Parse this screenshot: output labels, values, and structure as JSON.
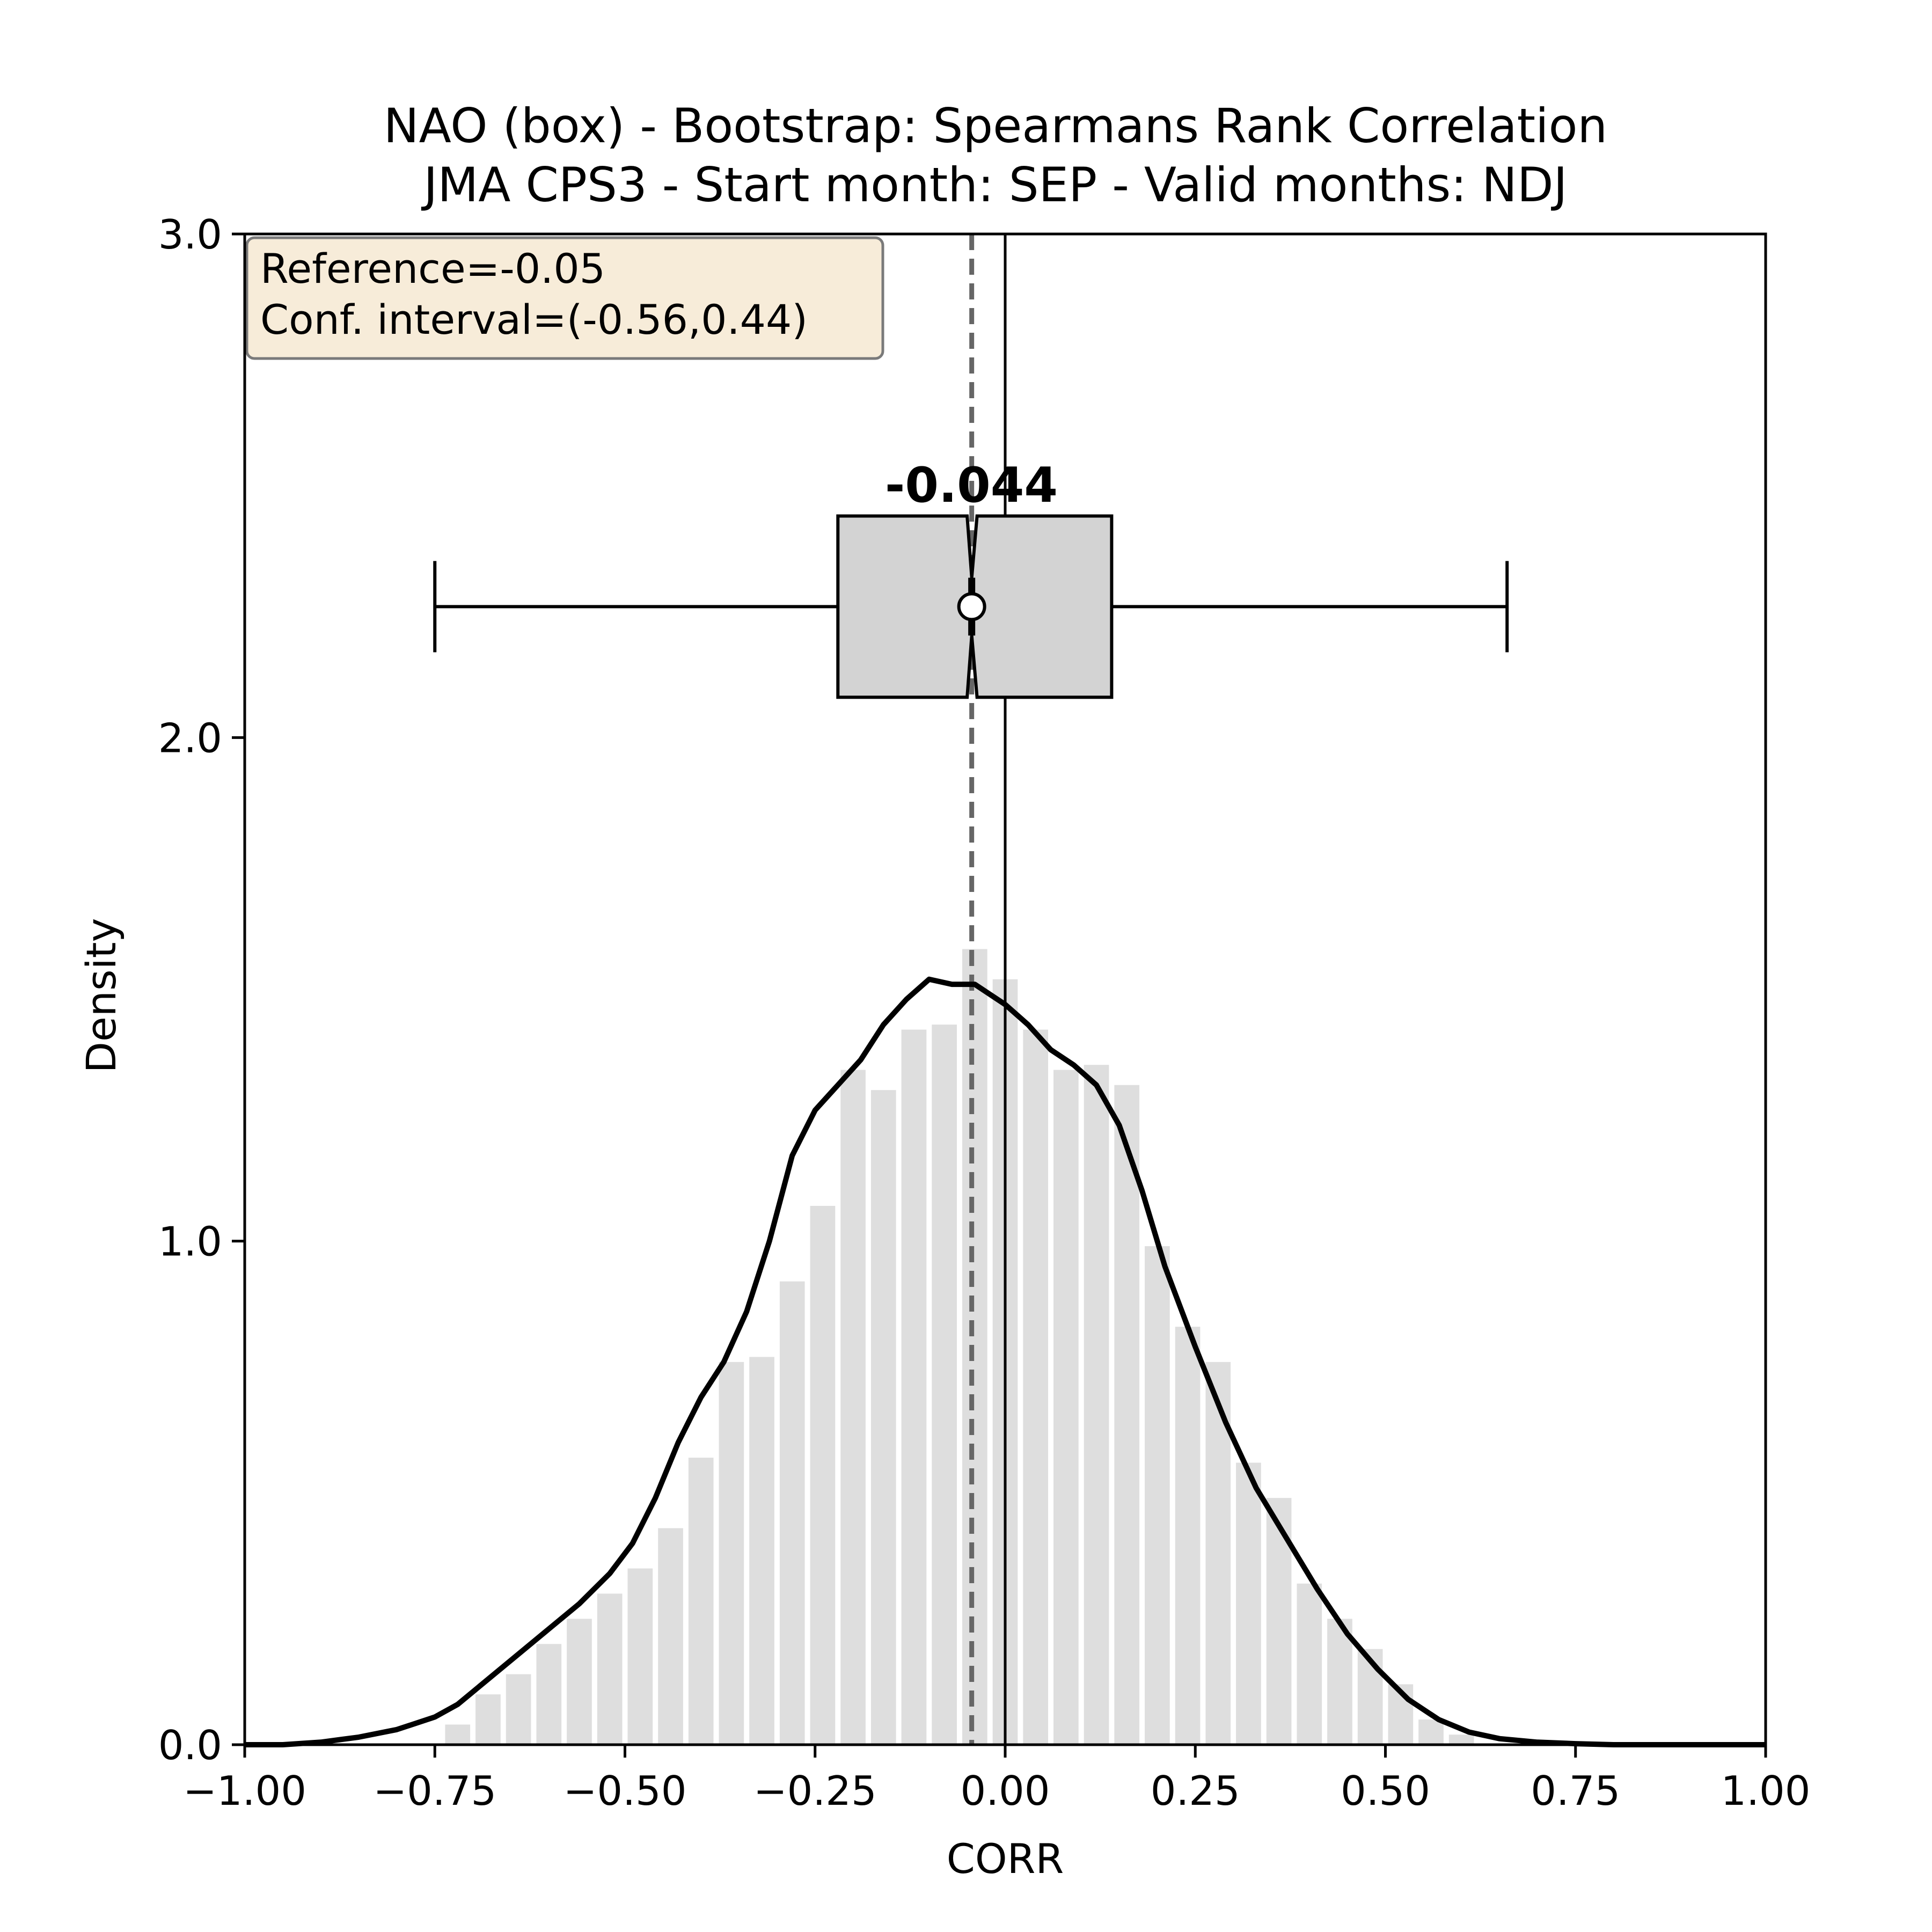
{
  "chart_data": {
    "type": "histogram",
    "title": "NAO (box) - Bootstrap: Spearmans Rank Correlation",
    "subtitle": "JMA CPS3 - Start month: SEP - Valid months: NDJ",
    "xlabel": "CORR",
    "ylabel": "Density",
    "xlim": [
      -1.0,
      1.0
    ],
    "ylim": [
      0.0,
      3.0
    ],
    "x_ticks": [
      -1.0,
      -0.75,
      -0.5,
      -0.25,
      0.0,
      0.25,
      0.5,
      0.75,
      1.0
    ],
    "x_tick_labels": [
      "−1.00",
      "−0.75",
      "−0.50",
      "−0.25",
      "0.00",
      "0.25",
      "0.50",
      "0.75",
      "1.00"
    ],
    "y_ticks": [
      0.0,
      1.0,
      2.0,
      3.0
    ],
    "y_tick_labels": [
      "0.0",
      "1.0",
      "2.0",
      "3.0"
    ],
    "grid": false,
    "histogram": {
      "bin_width": 0.04,
      "bin_edges_start": -0.74,
      "densities": [
        0.04,
        0.1,
        0.14,
        0.2,
        0.25,
        0.3,
        0.35,
        0.43,
        0.57,
        0.76,
        0.77,
        0.92,
        1.07,
        1.34,
        1.3,
        1.42,
        1.43,
        1.58,
        1.52,
        1.42,
        1.34,
        1.35,
        1.31,
        0.99,
        0.83,
        0.76,
        0.56,
        0.49,
        0.32,
        0.25,
        0.19,
        0.12,
        0.05,
        0.02
      ],
      "color": "#dedede"
    },
    "kde": {
      "x": [
        -1.0,
        -0.95,
        -0.9,
        -0.85,
        -0.8,
        -0.75,
        -0.72,
        -0.68,
        -0.64,
        -0.6,
        -0.56,
        -0.52,
        -0.49,
        -0.46,
        -0.43,
        -0.4,
        -0.37,
        -0.34,
        -0.31,
        -0.28,
        -0.25,
        -0.22,
        -0.19,
        -0.16,
        -0.13,
        -0.1,
        -0.07,
        -0.04,
        -0.02,
        0.0,
        0.03,
        0.06,
        0.09,
        0.12,
        0.15,
        0.18,
        0.21,
        0.25,
        0.29,
        0.33,
        0.37,
        0.41,
        0.45,
        0.49,
        0.53,
        0.57,
        0.61,
        0.65,
        0.7,
        0.75,
        0.8,
        0.85,
        0.9,
        0.95,
        1.0
      ],
      "density": [
        0.0,
        0.0,
        0.005,
        0.015,
        0.03,
        0.055,
        0.08,
        0.13,
        0.18,
        0.23,
        0.28,
        0.34,
        0.4,
        0.49,
        0.6,
        0.69,
        0.76,
        0.86,
        1.0,
        1.17,
        1.26,
        1.31,
        1.36,
        1.43,
        1.48,
        1.52,
        1.51,
        1.51,
        1.49,
        1.47,
        1.43,
        1.38,
        1.35,
        1.31,
        1.23,
        1.1,
        0.95,
        0.79,
        0.64,
        0.51,
        0.41,
        0.31,
        0.22,
        0.15,
        0.09,
        0.05,
        0.025,
        0.012,
        0.005,
        0.002,
        0.0,
        0.0,
        0.0,
        0.0,
        0.0
      ],
      "color": "#000000"
    },
    "boxplot": {
      "whisker_low": -0.75,
      "q1": -0.22,
      "median": -0.044,
      "mean": -0.044,
      "q3": 0.14,
      "whisker_high": 0.66,
      "notch_low": -0.05,
      "notch_high": -0.037,
      "y_center": 2.26,
      "y_low": 2.08,
      "y_high": 2.44,
      "fill": "#d3d3d3",
      "median_label": "-0.044"
    },
    "reference_line": {
      "x": -0.044,
      "style": "dashed",
      "color": "#666666"
    },
    "zero_line": {
      "x": 0.0,
      "style": "solid",
      "color": "#000000"
    },
    "info_box": {
      "line1": "Reference=-0.05",
      "line2": "Conf. interval=(-0.56,0.44)",
      "background": "#f7ecd9",
      "border": "#7a7a7a",
      "placement": "top-left"
    }
  }
}
